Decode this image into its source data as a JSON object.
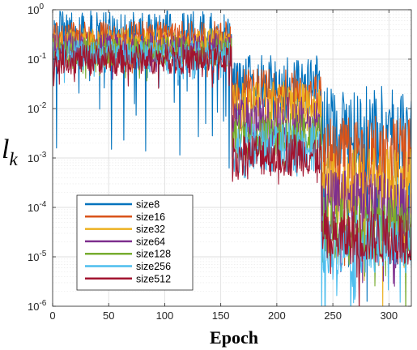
{
  "chart_data": {
    "type": "line",
    "title": "",
    "xlabel": "Epoch",
    "ylabel": "l",
    "ylabel_subscript": "k",
    "xlim": [
      0,
      320
    ],
    "ylim": [
      1e-06,
      1
    ],
    "yscale": "log",
    "grid": true,
    "legend_position": "bottom-left",
    "xticks": [
      0,
      50,
      100,
      150,
      200,
      250,
      300
    ],
    "yticks": [
      1e-06,
      1e-05,
      0.0001,
      0.001,
      0.01,
      0.1,
      1
    ],
    "ytick_mantissa": "10",
    "ytick_exponents": [
      "-6",
      "-5",
      "-4",
      "-3",
      "-2",
      "-1",
      "0"
    ],
    "segments": [
      {
        "start": 0,
        "end": 160
      },
      {
        "start": 160,
        "end": 240
      },
      {
        "start": 240,
        "end": 320
      }
    ],
    "series": [
      {
        "name": "size8",
        "color": "#0072BD",
        "level": [
          0.3,
          0.03,
          0.004
        ],
        "spread": [
          1.0,
          1.2,
          1.7
        ],
        "dips": [
          2.5,
          0.6,
          3.2
        ]
      },
      {
        "name": "size16",
        "color": "#D95319",
        "level": [
          0.26,
          0.02,
          0.0013
        ],
        "spread": [
          0.7,
          1.0,
          1.5
        ],
        "dips": [
          0.6,
          0.3,
          2.5
        ]
      },
      {
        "name": "size32",
        "color": "#EDB120",
        "level": [
          0.21,
          0.011,
          0.00035
        ],
        "spread": [
          0.6,
          1.0,
          1.4
        ],
        "dips": [
          0.4,
          0.2,
          2.0
        ]
      },
      {
        "name": "size64",
        "color": "#7E2F8E",
        "level": [
          0.17,
          0.0055,
          0.00012
        ],
        "spread": [
          0.6,
          1.0,
          1.4
        ],
        "dips": [
          0.4,
          0.2,
          1.8
        ]
      },
      {
        "name": "size128",
        "color": "#77AC30",
        "level": [
          0.14,
          0.0027,
          4e-05
        ],
        "spread": [
          0.6,
          1.0,
          1.3
        ],
        "dips": [
          0.4,
          0.2,
          1.5
        ]
      },
      {
        "name": "size256",
        "color": "#4DBEEE",
        "level": [
          0.12,
          0.0016,
          1.8e-05
        ],
        "spread": [
          0.6,
          1.0,
          1.2
        ],
        "dips": [
          0.4,
          0.3,
          1.5
        ]
      },
      {
        "name": "size512",
        "color": "#A2142F",
        "level": [
          0.1,
          0.0012,
          2.5e-05
        ],
        "spread": [
          0.6,
          0.9,
          1.1
        ],
        "dips": [
          0.4,
          0.3,
          1.3
        ]
      }
    ]
  }
}
